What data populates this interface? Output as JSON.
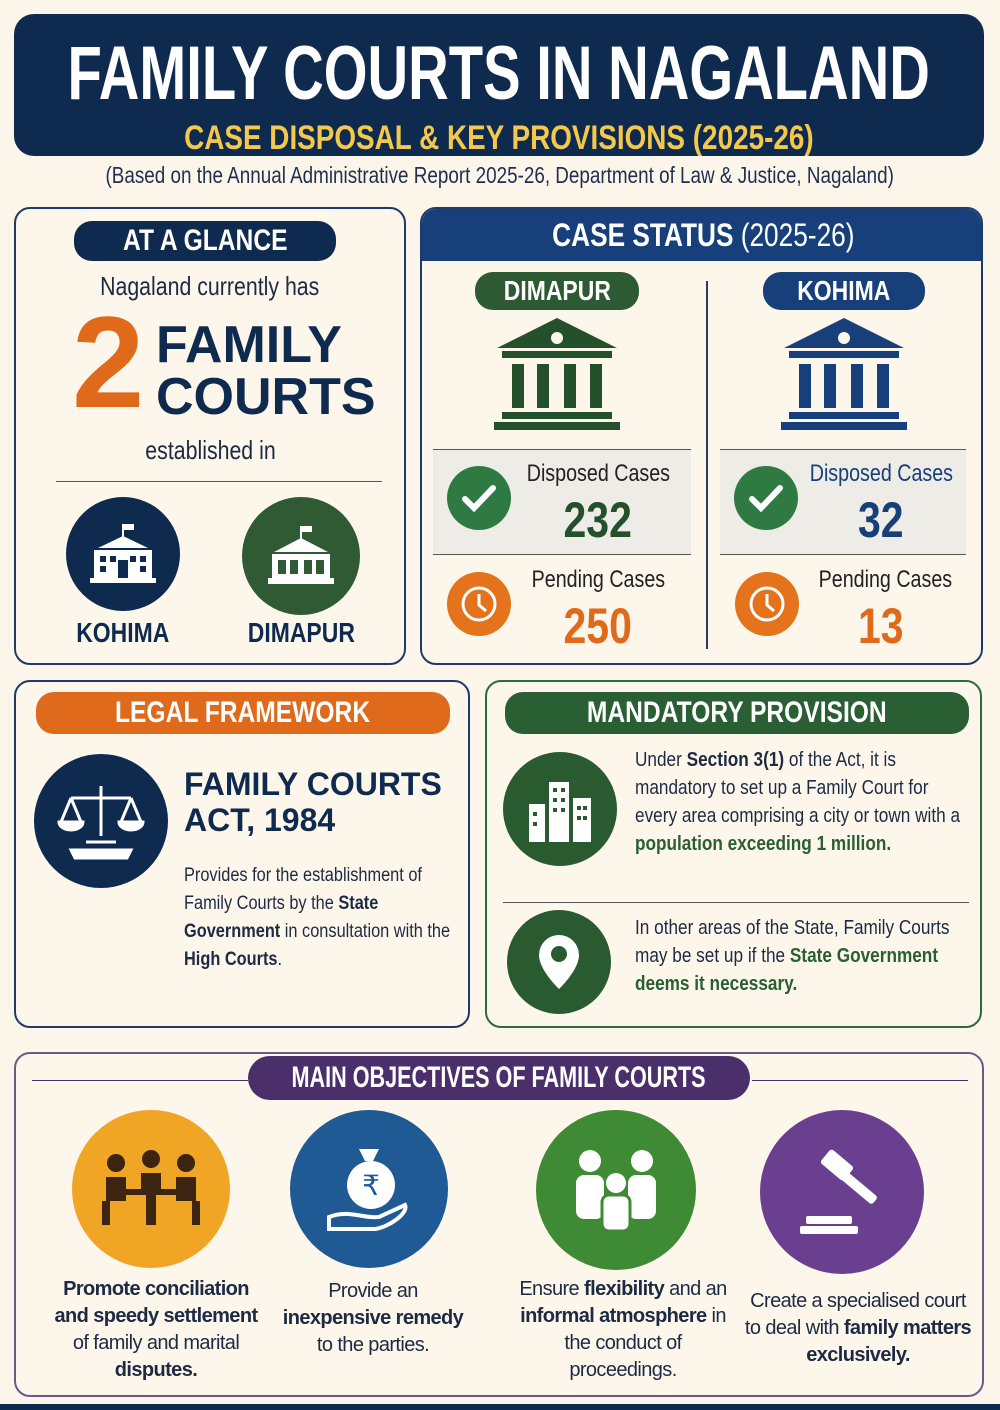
{
  "header": {
    "title": "FAMILY COURTS IN NAGALAND",
    "subtitle": "CASE DISPOSAL & KEY PROVISIONS (2025-26)",
    "source": "(Based on the Annual Administrative Report 2025-26, Department of Law & Justice, Nagaland)"
  },
  "glance": {
    "heading": "AT A GLANCE",
    "intro": "Nagaland currently has",
    "count": "2",
    "label_line1": "FAMILY",
    "label_line2": "COURTS",
    "established": "established in",
    "places": [
      "KOHIMA",
      "DIMAPUR"
    ]
  },
  "case_status": {
    "heading": "CASE STATUS",
    "year": "(2025-26)",
    "courts": [
      {
        "name": "DIMAPUR",
        "disposed_label": "Disposed Cases",
        "disposed": "232",
        "pending_label": "Pending Cases",
        "pending": "250"
      },
      {
        "name": "KOHIMA",
        "disposed_label": "Disposed Cases",
        "disposed": "32",
        "pending_label": "Pending Cases",
        "pending": "13"
      }
    ]
  },
  "legal": {
    "heading": "LEGAL FRAMEWORK",
    "act_line1": "FAMILY COURTS",
    "act_line2": "ACT, 1984",
    "desc_1": "Provides for the establishment of Family Courts by the ",
    "desc_b1": "State Government",
    "desc_2": " in consultation with the ",
    "desc_b2": "High Courts",
    "desc_3": "."
  },
  "mandatory": {
    "heading": "MANDATORY PROVISION",
    "p1_a": "Under ",
    "p1_b": "Section 3(1)",
    "p1_c": " of the Act, it is mandatory to set up a Family Court for every area comprising a city or town with a ",
    "p1_d": "population exceeding 1 million.",
    "p2_a": "In other areas of the State, Family Courts may be set up if the ",
    "p2_b": "State Government deems it necessary."
  },
  "objectives": {
    "heading": "MAIN OBJECTIVES OF FAMILY COURTS",
    "items": [
      {
        "b1": "Promote conciliation and speedy settlement",
        "t1": " of family and marital ",
        "b2": "disputes."
      },
      {
        "t0": "Provide an ",
        "b1": "inexpensive remedy",
        "t1": " to the parties."
      },
      {
        "t0": "Ensure ",
        "b1": "flexibility",
        "t1": " and an ",
        "b2": "informal atmosphere",
        "t2": " in the conduct of proceedings."
      },
      {
        "t0": "Create a specialised court to deal with ",
        "b1": "family matters exclusively."
      }
    ]
  },
  "colors": {
    "navy": "#0f2a4f",
    "blue": "#173f7a",
    "green": "#2f6b3a",
    "orange": "#e06a1b",
    "purple": "#4a2f6b",
    "yellow": "#f3c84b"
  }
}
